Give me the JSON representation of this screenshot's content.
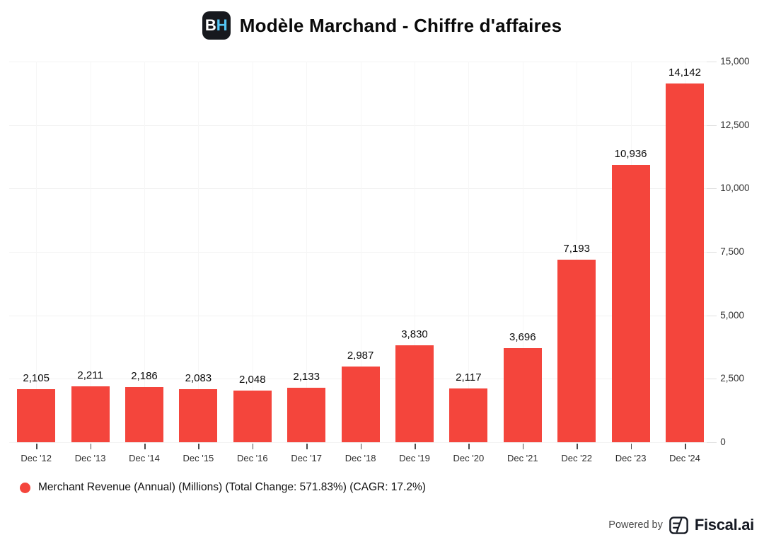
{
  "header": {
    "logo": {
      "letter_b": "B",
      "letter_h": "H",
      "bg_color": "#17191E",
      "b_color": "#FFFFFF",
      "h_color": "#55C6F5"
    },
    "title": "Modèle Marchand - Chiffre d'affaires"
  },
  "chart_data": {
    "type": "bar",
    "title": "Modèle Marchand - Chiffre d'affaires",
    "categories": [
      "Dec '12",
      "Dec '13",
      "Dec '14",
      "Dec '15",
      "Dec '16",
      "Dec '17",
      "Dec '18",
      "Dec '19",
      "Dec '20",
      "Dec '21",
      "Dec '22",
      "Dec '23",
      "Dec '24"
    ],
    "values": [
      2105,
      2211,
      2186,
      2083,
      2048,
      2133,
      2987,
      3830,
      2117,
      3696,
      7193,
      10936,
      14142
    ],
    "value_labels": [
      "2,105",
      "2,211",
      "2,186",
      "2,083",
      "2,048",
      "2,133",
      "2,987",
      "3,830",
      "2,117",
      "3,696",
      "7,193",
      "10,936",
      "14,142"
    ],
    "series_name": "Merchant Revenue (Annual) (Millions) (Total Change: 571.83%) (CAGR: 17.2%)",
    "ylim": [
      0,
      15000
    ],
    "yticks": [
      0,
      2500,
      5000,
      7500,
      10000,
      12500,
      15000
    ],
    "ytick_labels": [
      "0",
      "2,500",
      "5,000",
      "7,500",
      "10,000",
      "12,500",
      "15,000"
    ],
    "y_axis_side": "right",
    "grid": true,
    "legend_position": "bottom-left",
    "bar_color": "#F4453C",
    "gridline_color": "#F2F2F2",
    "total_change": "571.83%",
    "cagr": "17.2%"
  },
  "legend": {
    "dot_color": "#F4453C",
    "label": "Merchant Revenue (Annual) (Millions) (Total Change: 571.83%) (CAGR: 17.2%)"
  },
  "footer": {
    "powered_by": "Powered by",
    "brand": "Fiscal.ai"
  }
}
